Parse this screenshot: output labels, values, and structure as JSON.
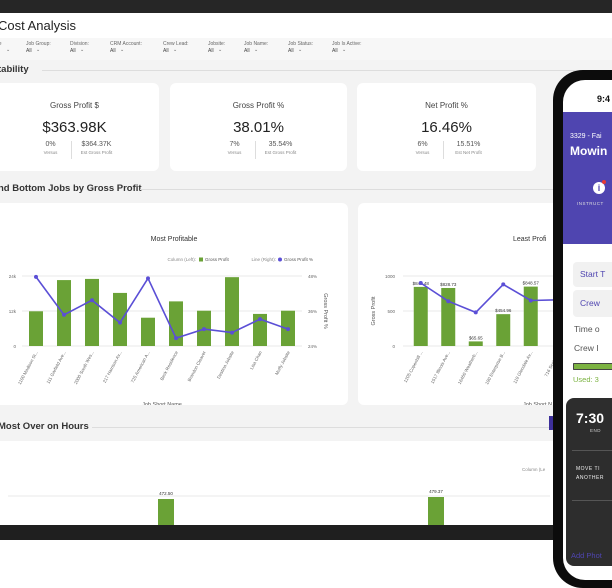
{
  "page": {
    "title": "Cost Analysis"
  },
  "filters": [
    {
      "label": "ge",
      "value": "r"
    },
    {
      "label": "Job Group:",
      "value": "All"
    },
    {
      "label": "Division:",
      "value": "All"
    },
    {
      "label": "CRM Account:",
      "value": "All"
    },
    {
      "label": "Crew Lead:",
      "value": "All"
    },
    {
      "label": "Jobsite:",
      "value": "All"
    },
    {
      "label": "Job Name:",
      "value": "All"
    },
    {
      "label": "Job Status:",
      "value": "All"
    },
    {
      "label": "Job Is Active:",
      "value": "All"
    }
  ],
  "sections": {
    "profitability": "tability",
    "top_bottom": "nd Bottom Jobs by Gross Profit",
    "over_hours": "Most Over on Hours"
  },
  "kpis": [
    {
      "title": "Gross Profit $",
      "value": "$363.98K",
      "versus": "0%",
      "versus_label": "Versus",
      "est": "$364.37K",
      "est_label": "Est Gross Profit"
    },
    {
      "title": "Gross Profit %",
      "value": "38.01%",
      "versus": "7%",
      "versus_label": "Versus",
      "est": "35.54%",
      "est_label": "Est Gross Profit"
    },
    {
      "title": "Net Profit %",
      "value": "16.46%",
      "versus": "6%",
      "versus_label": "Versus",
      "est": "15.51%",
      "est_label": "Est Net Profit"
    }
  ],
  "colors": {
    "bar": "#6aa236",
    "line": "#5b4fd6",
    "phone_header": "#4f45b0",
    "phone_card": "#2d2d2d",
    "used": "#7cb342"
  },
  "chart_data": [
    {
      "type": "bar",
      "title": "Most Profitable",
      "xlabel": "Job Short Name",
      "ylabel": "",
      "ylabel_right": "Gross Profit %",
      "legend": {
        "column_label": "Column (Left):",
        "line_label": "Line (Right):",
        "placement": "top-right"
      },
      "categories": [
        "1100 Madison St...",
        "111 Garfield Ave...",
        "2000 South Wes...",
        "217 Harrison Av...",
        "725 American A...",
        "Beck Residence",
        "Brandon Cleaver",
        "Destina Jobsite",
        "Lisa Chan",
        "Muffy Jobsite"
      ],
      "ylim": [
        0,
        24000
      ],
      "yticks": [
        "0",
        "12k",
        "24k"
      ],
      "ylim_right": [
        24,
        48
      ],
      "yticks_right": [
        "24%",
        "36%",
        "48%"
      ],
      "series": [
        {
          "name": "Gross Profit",
          "kind": "column",
          "values": [
            11900,
            22600,
            23000,
            18200,
            9700,
            15300,
            12100,
            23600,
            11000,
            12100
          ]
        },
        {
          "name": "Gross Profit %",
          "kind": "line",
          "values": [
            47.7,
            34.7,
            39.7,
            32.0,
            47.2,
            26.7,
            29.8,
            28.6,
            33.2,
            29.8
          ]
        }
      ]
    },
    {
      "type": "bar",
      "title": "Least Profi",
      "xlabel": "Job Short N",
      "ylabel": "Gross Profit",
      "categories": [
        "1205 Copenhill ...",
        "1517 Illinois Ave...",
        "16460 Weatherb...",
        "180 Enterprise B...",
        "119 Glendale Av...",
        "716 Scott St..."
      ],
      "ylim": [
        0,
        1000
      ],
      "yticks": [
        "0",
        "500",
        "1000"
      ],
      "series": [
        {
          "name": "Gross Profit",
          "kind": "column",
          "values": [
            844.48,
            828.73,
            65.65,
            454.96,
            848.57,
            null
          ],
          "data_labels": [
            "$844.48",
            "$828.73",
            "$65.65",
            "$454.96",
            "$848.57",
            ""
          ]
        },
        {
          "name": "Gross Profit %",
          "kind": "line",
          "values_left_axis_equiv": [
            900,
            640,
            480,
            880,
            650,
            660
          ]
        }
      ]
    },
    {
      "type": "bar",
      "title": "",
      "legend": {
        "column_label": "Column (Le"
      },
      "data_labels": [
        "270.00",
        "472.50",
        "479.37"
      ]
    }
  ],
  "phone": {
    "time": "9:4",
    "job_code": "3329 - Fai",
    "job_title": "Mowin",
    "instructions": "INSTRUCT",
    "start_button": "Start T",
    "crew_button": "Crew",
    "time_label": "Time o",
    "crew_label": "Crew I",
    "used": "Used: 3",
    "used_fraction": 1.0,
    "end_time": "7:30",
    "end_label": "END",
    "move_line1": "MOVE TI",
    "move_line2": "ANOTHER",
    "add_photo": "Add Phot"
  }
}
